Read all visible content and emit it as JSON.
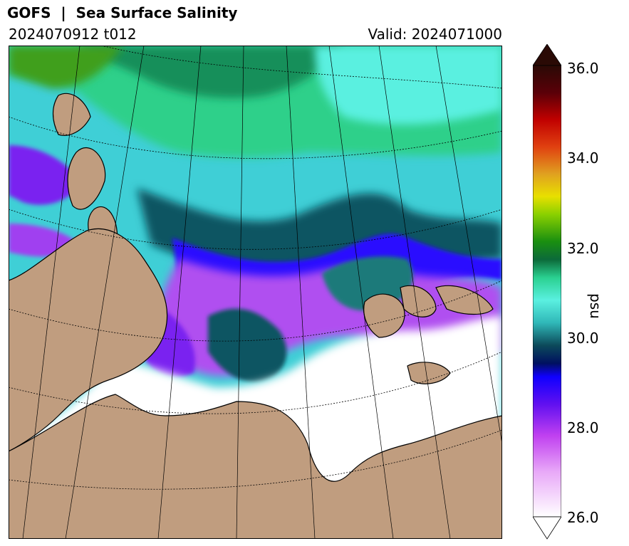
{
  "header": {
    "title": "GOFS  |  Sea Surface Salinity",
    "run": "2024070912 t012",
    "valid": "Valid: 2024071000"
  },
  "colorbar": {
    "unit": "psu",
    "ticks": [
      "36.0",
      "34.0",
      "32.0",
      "30.0",
      "28.0",
      "26.0"
    ],
    "min": 26.0,
    "max": 36.0,
    "extend": "both"
  },
  "colors": {
    "land": "#c09d7f",
    "coast": "#000000",
    "fresh": "#ffffff",
    "purple": "#a020f0",
    "blue": "#2a00ff",
    "darkteal": "#0b4f5a",
    "cyan": "#4de8e8",
    "green": "#1fa34a",
    "olive": "#3f8f1a"
  }
}
